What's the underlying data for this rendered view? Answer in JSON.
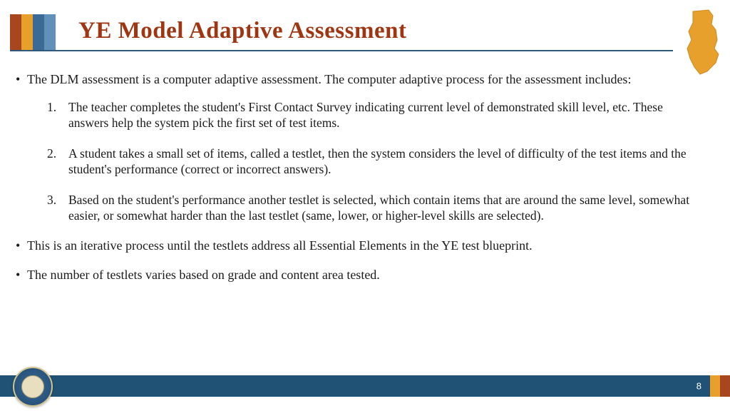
{
  "title": "YE Model Adaptive Assessment",
  "header_stripes": [
    {
      "color": "#a8461f",
      "width": 16
    },
    {
      "color": "#e8a02c",
      "width": 16
    },
    {
      "color": "#3a6a95",
      "width": 16
    },
    {
      "color": "#6190b8",
      "width": 16
    }
  ],
  "title_color": "#a03512",
  "underline_color": "#2d5a7a",
  "nj_fill": "#e8a02c",
  "content": {
    "intro": "The DLM assessment is a computer adaptive assessment.  The computer adaptive process for the assessment includes:",
    "steps": [
      "The teacher completes the student's First Contact Survey indicating current level of demonstrated skill level, etc. These answers help the system pick the first set of test items.",
      "A student takes a small set of items, called a testlet, then the system considers the level of difficulty of the test items and the student's performance (correct or incorrect answers).",
      "Based on the student's performance another testlet is selected, which contain items that are around the same level, somewhat easier, or somewhat harder than the last testlet (same, lower, or higher-level skills are selected)."
    ],
    "iterative": "This is an iterative process until the testlets address all Essential Elements in the YE test blueprint.",
    "number": "The number of testlets varies based on grade and content area tested."
  },
  "footer": {
    "main_color": "#1f5274",
    "stripes": [
      {
        "color": "#e8a02c",
        "width": 14
      },
      {
        "color": "#a8461f",
        "width": 14
      }
    ],
    "page_number": "8"
  }
}
